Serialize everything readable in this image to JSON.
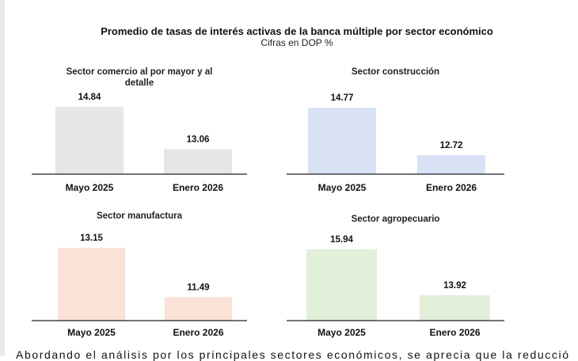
{
  "title": "Promedio de tasas de interés activas de la banca múltiple por sector económico",
  "subtitle": "Cifras en DOP %",
  "chart_data": [
    {
      "type": "bar",
      "title": [
        "Sector comercio al por mayor y al",
        "detalle"
      ],
      "categories": [
        "Mayo 2025",
        "Enero 2026"
      ],
      "values": [
        14.84,
        13.06
      ],
      "value_labels": [
        "14.84",
        "13.06"
      ],
      "color": "#e6e6e6",
      "ylim": [
        12,
        15.2
      ]
    },
    {
      "type": "bar",
      "title": [
        "Sector construcción"
      ],
      "categories": [
        "Mayo 2025",
        "Enero 2026"
      ],
      "values": [
        14.77,
        12.72
      ],
      "value_labels": [
        "14.77",
        "12.72"
      ],
      "color": "#d9e2f5",
      "ylim": [
        11.9,
        15.1
      ]
    },
    {
      "type": "bar",
      "title": [
        "Sector manufactura"
      ],
      "categories": [
        "Mayo 2025",
        "Enero 2026"
      ],
      "values": [
        13.15,
        11.49
      ],
      "value_labels": [
        "13.15",
        "11.49"
      ],
      "color": "#fae2d6",
      "ylim": [
        10.7,
        13.3
      ]
    },
    {
      "type": "bar",
      "title": [
        "Sector agropecuario"
      ],
      "categories": [
        "Mayo 2025",
        "Enero 2026"
      ],
      "values": [
        15.94,
        13.92
      ],
      "value_labels": [
        "15.94",
        "13.92"
      ],
      "color": "#e2efd9",
      "ylim": [
        12.8,
        16.1
      ]
    }
  ],
  "footer": "Abordando el análisis por los principales sectores económicos, se aprecia que la reducción"
}
